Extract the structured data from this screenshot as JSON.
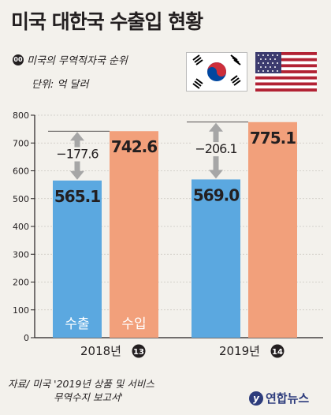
{
  "title": "미국 대한국 수출입 현황",
  "rank_legend": {
    "badge": "00",
    "label": "미국의 무역적자국 순위"
  },
  "unit_label": "단위: 억 달러",
  "flags": [
    "korea-flag",
    "usa-flag"
  ],
  "colors": {
    "export": "#5ba8e0",
    "import": "#f2a07b",
    "gap_arrow": "#a6a6a6",
    "axis": "#231f20",
    "grid": "#c9c6c0",
    "background": "#f3f1ec"
  },
  "chart_data": {
    "type": "bar",
    "categories": [
      "2018년",
      "2019년"
    ],
    "category_ranks": [
      "13",
      "14"
    ],
    "series": [
      {
        "name": "수출",
        "values": [
          565.1,
          569.0
        ],
        "labels": [
          "565.1",
          "569.0"
        ]
      },
      {
        "name": "수입",
        "values": [
          742.6,
          775.1
        ],
        "labels": [
          "742.6",
          "775.1"
        ]
      }
    ],
    "gaps": [
      -177.6,
      -206.1
    ],
    "gap_labels": [
      "−177.6",
      "−206.1"
    ],
    "yticks": [
      0,
      100,
      200,
      300,
      400,
      500,
      600,
      700,
      800
    ],
    "ytick_labels": [
      "0",
      "100",
      "200",
      "300",
      "400",
      "500",
      "600",
      "700",
      "800"
    ],
    "ylim": [
      0,
      800
    ],
    "grid": true,
    "xlabel": "",
    "ylabel": ""
  },
  "source": {
    "line1": "자료/ 미국 '2019년 상품 및 서비스",
    "line2": "무역수지 보고서'"
  },
  "credit": {
    "mark": "y",
    "name": "연합뉴스"
  }
}
